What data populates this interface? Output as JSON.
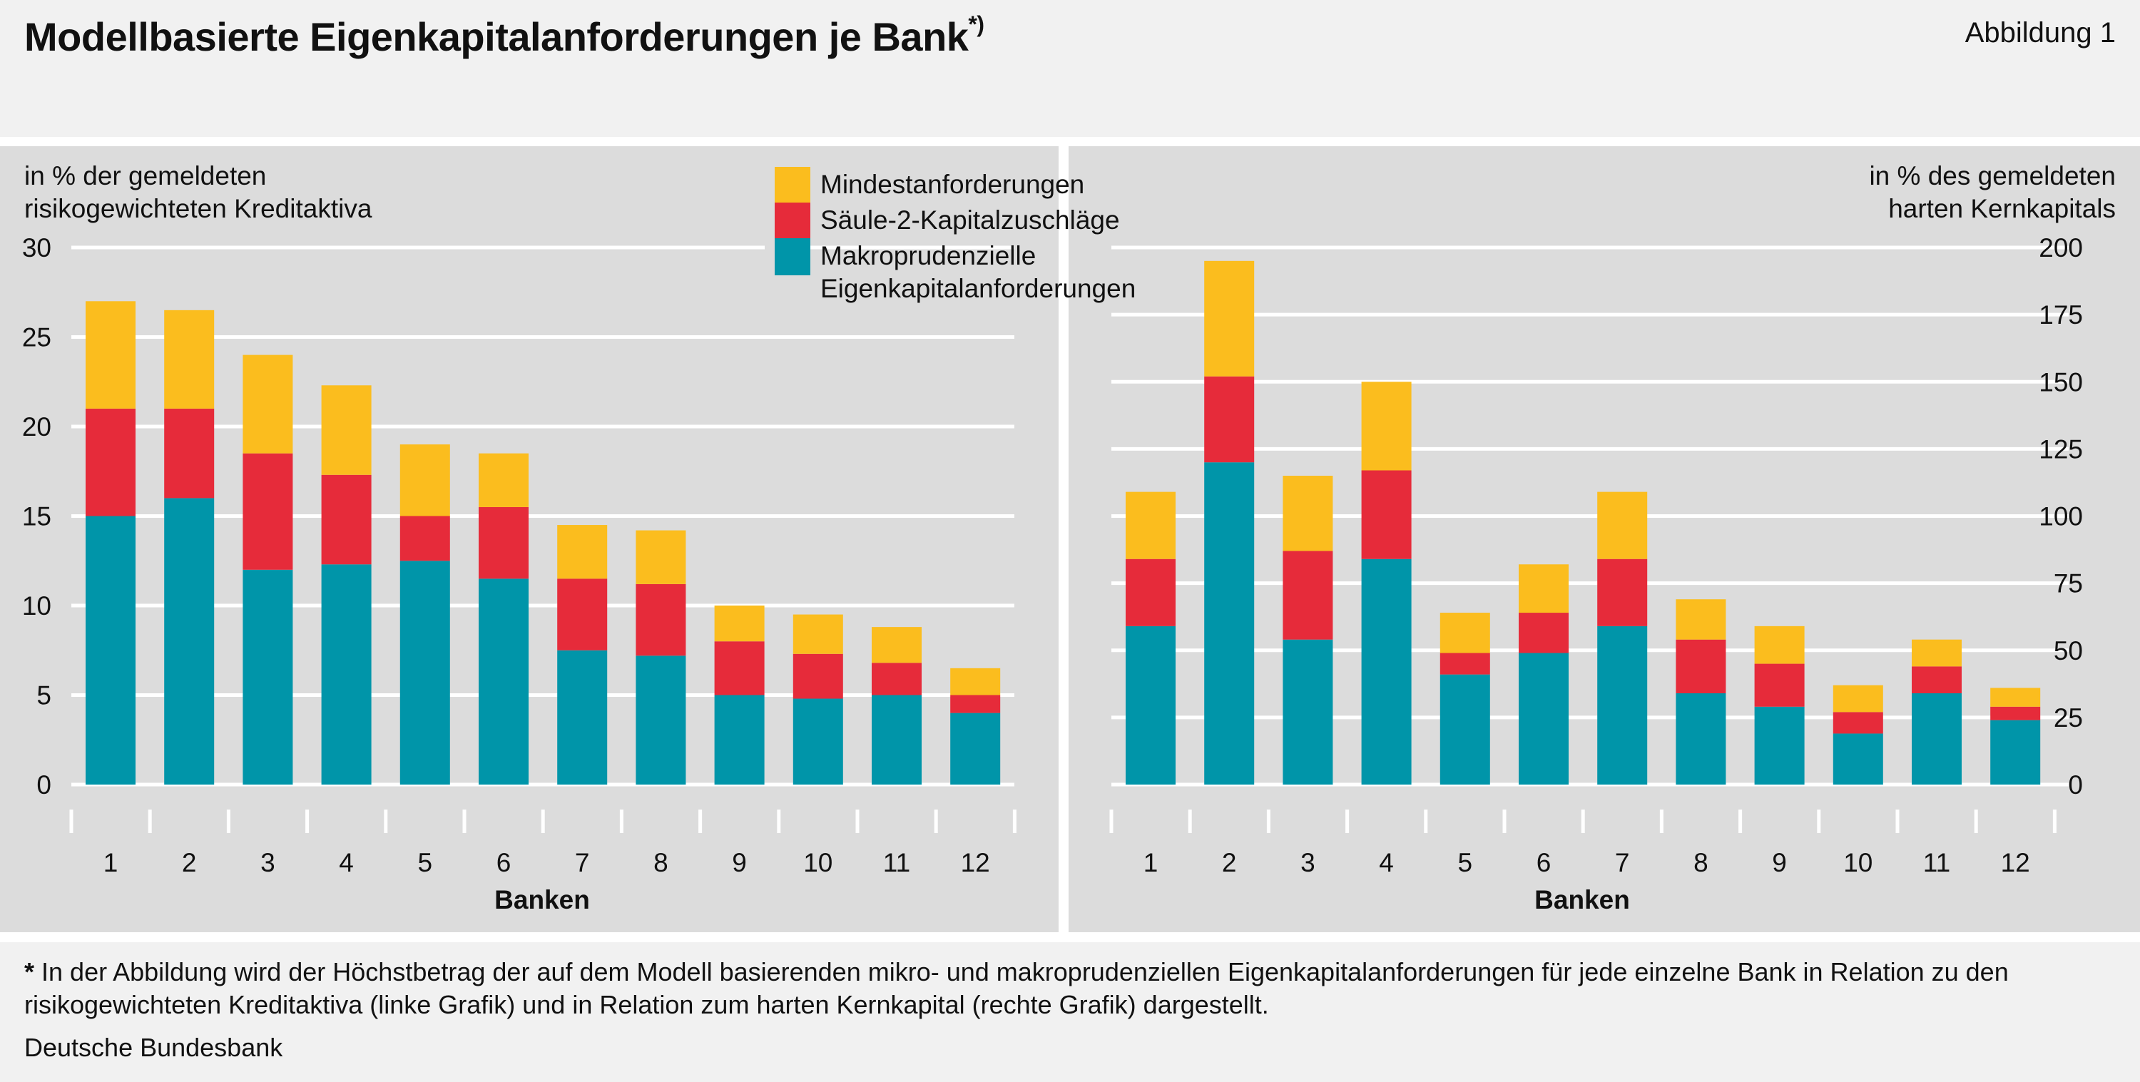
{
  "title": "Modellbasierte Eigenkapitalanforderungen je Bank",
  "title_footnote_marker": "*)",
  "figure_label": "Abbildung 1",
  "legend": [
    {
      "name": "Mindestanforderungen",
      "color": "#fbbd1e"
    },
    {
      "name": "Säule-2-Kapitalzuschläge",
      "color": "#e62b3a"
    },
    {
      "name": "Makroprudenzielle Eigenkapitalanforderungen",
      "color": "#0095a9"
    }
  ],
  "chart_data": [
    {
      "type": "bar",
      "stacked": true,
      "unit_label_lines": [
        "in % der gemeldeten",
        "risikogewichteten Kreditaktiva"
      ],
      "xlabel": "Banken",
      "categories": [
        "1",
        "2",
        "3",
        "4",
        "5",
        "6",
        "7",
        "8",
        "9",
        "10",
        "11",
        "12"
      ],
      "ylim": [
        0,
        30
      ],
      "yticks": [
        0,
        5,
        10,
        15,
        20,
        25,
        30
      ],
      "axis_side": "left",
      "grid": true,
      "series": [
        {
          "name": "Makroprudenzielle Eigenkapitalanforderungen",
          "color": "#0095a9",
          "values": [
            15,
            16,
            12,
            12.3,
            12.5,
            11.5,
            7.5,
            7.2,
            5,
            4.8,
            5,
            4
          ]
        },
        {
          "name": "Säule-2-Kapitalzuschläge",
          "color": "#e62b3a",
          "values": [
            6,
            5,
            6.5,
            5,
            2.5,
            4,
            4,
            4,
            3,
            2.5,
            1.8,
            1
          ]
        },
        {
          "name": "Mindestanforderungen",
          "color": "#fbbd1e",
          "values": [
            6,
            5.5,
            5.5,
            5,
            4,
            3,
            3,
            3,
            2,
            2.2,
            2,
            1.5
          ]
        }
      ]
    },
    {
      "type": "bar",
      "stacked": true,
      "unit_label_lines": [
        "in % des gemeldeten",
        "harten Kernkapitals"
      ],
      "xlabel": "Banken",
      "categories": [
        "1",
        "2",
        "3",
        "4",
        "5",
        "6",
        "7",
        "8",
        "9",
        "10",
        "11",
        "12"
      ],
      "ylim": [
        0,
        200
      ],
      "yticks": [
        0,
        25,
        50,
        75,
        100,
        125,
        150,
        175,
        200
      ],
      "axis_side": "right",
      "grid": true,
      "series": [
        {
          "name": "Makroprudenzielle Eigenkapitalanforderungen",
          "color": "#0095a9",
          "values": [
            59,
            120,
            54,
            84,
            41,
            49,
            59,
            34,
            29,
            19,
            34,
            24
          ]
        },
        {
          "name": "Säule-2-Kapitalzuschläge",
          "color": "#e62b3a",
          "values": [
            25,
            32,
            33,
            33,
            8,
            15,
            25,
            20,
            16,
            8,
            10,
            5
          ]
        },
        {
          "name": "Mindestanforderungen",
          "color": "#fbbd1e",
          "values": [
            25,
            43,
            28,
            33,
            15,
            18,
            25,
            15,
            14,
            10,
            10,
            7
          ]
        }
      ]
    }
  ],
  "footnote": {
    "marker": "*",
    "text": "In der Abbildung wird der Höchstbetrag der auf dem Modell basierenden mikro- und makroprudenziellen Eigenkapitalanforderungen für jede einzelne Bank in Relation zu den risikogewichteten Kreditaktiva (linke Grafik) und in Relation zum harten Kernkapital (rechte Grafik) dargestellt."
  },
  "source": "Deutsche Bundesbank"
}
